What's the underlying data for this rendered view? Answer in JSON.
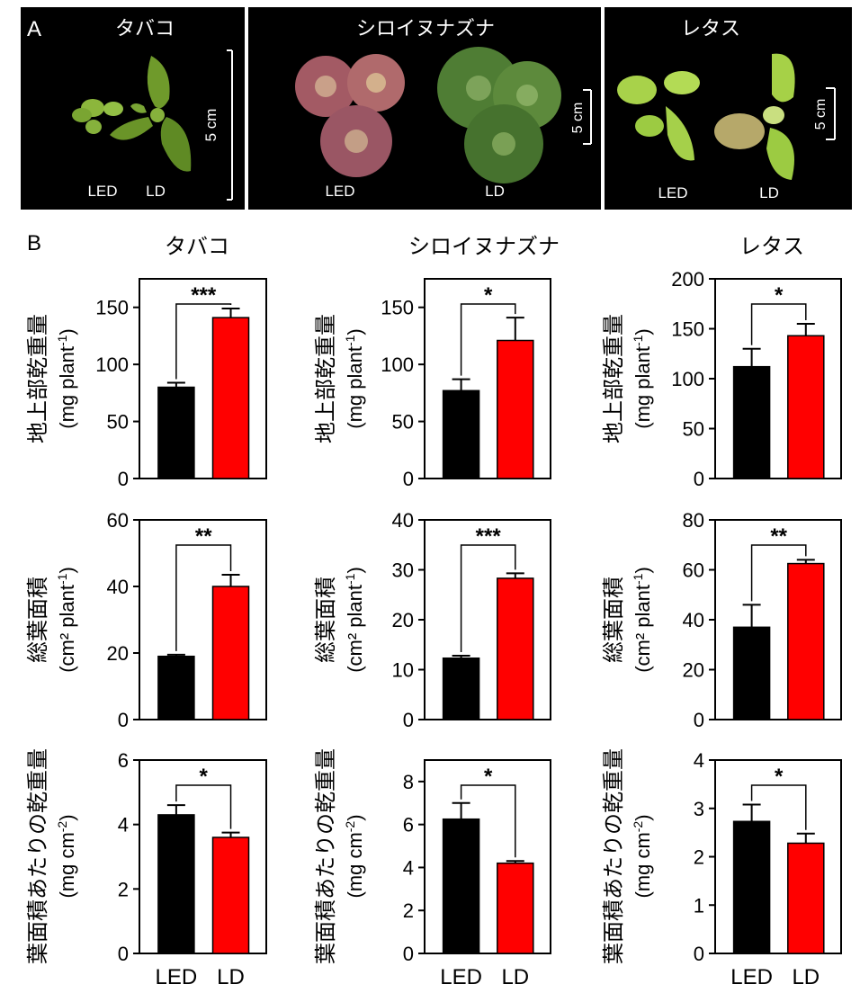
{
  "panel_a": {
    "label": "A",
    "photos": [
      {
        "species": "タバコ",
        "labels": [
          "LED",
          "LD"
        ],
        "scale_bar": "5 cm"
      },
      {
        "species": "シロイヌナズナ",
        "labels": [
          "LED",
          "LD"
        ],
        "scale_bar": "5 cm"
      },
      {
        "species": "レタス",
        "labels": [
          "LED",
          "LD"
        ],
        "scale_bar": "5 cm"
      }
    ]
  },
  "panel_b": {
    "label": "B",
    "species": [
      "タバコ",
      "シロイヌナズナ",
      "レタス"
    ],
    "row_labels": [
      {
        "main": "地上部乾重量",
        "unit_prefix": "(mg plant",
        "unit_sup": "-1",
        "unit_suffix": ")"
      },
      {
        "main": "総葉面積",
        "unit_prefix": "(cm² plant",
        "unit_sup": "-1",
        "unit_suffix": ")"
      },
      {
        "main": "葉面積あたりの乾重量",
        "unit_prefix": "(mg cm",
        "unit_sup": "-2",
        "unit_suffix": ")"
      }
    ],
    "categories": [
      "LED",
      "LD"
    ],
    "colors": {
      "LED": "#000000",
      "LD": "#ff0000"
    }
  },
  "chart_data": [
    {
      "type": "bar",
      "species": "タバコ",
      "ylabel": "地上部乾重量 (mg plant-1)",
      "categories": [
        "LED",
        "LD"
      ],
      "values": [
        80,
        141
      ],
      "errors": [
        4,
        8
      ],
      "ylim": [
        0,
        175
      ],
      "yticks": [
        0,
        50,
        100,
        150
      ],
      "significance": "***"
    },
    {
      "type": "bar",
      "species": "シロイヌナズナ",
      "ylabel": "地上部乾重量 (mg plant-1)",
      "categories": [
        "LED",
        "LD"
      ],
      "values": [
        77,
        121
      ],
      "errors": [
        10,
        20
      ],
      "ylim": [
        0,
        175
      ],
      "yticks": [
        0,
        50,
        100,
        150
      ],
      "significance": "*"
    },
    {
      "type": "bar",
      "species": "レタス",
      "ylabel": "地上部乾重量 (mg plant-1)",
      "categories": [
        "LED",
        "LD"
      ],
      "values": [
        112,
        143
      ],
      "errors": [
        18,
        12
      ],
      "ylim": [
        0,
        200
      ],
      "yticks": [
        0,
        50,
        100,
        150,
        200
      ],
      "significance": "*"
    },
    {
      "type": "bar",
      "species": "タバコ",
      "ylabel": "総葉面積 (cm2 plant-1)",
      "categories": [
        "LED",
        "LD"
      ],
      "values": [
        19,
        40
      ],
      "errors": [
        0.5,
        3.5
      ],
      "ylim": [
        0,
        60
      ],
      "yticks": [
        0,
        20,
        40,
        60
      ],
      "significance": "**"
    },
    {
      "type": "bar",
      "species": "シロイヌナズナ",
      "ylabel": "総葉面積 (cm2 plant-1)",
      "categories": [
        "LED",
        "LD"
      ],
      "values": [
        12.3,
        28.3
      ],
      "errors": [
        0.5,
        1
      ],
      "ylim": [
        0,
        40
      ],
      "yticks": [
        0,
        10,
        20,
        30,
        40
      ],
      "significance": "***"
    },
    {
      "type": "bar",
      "species": "レタス",
      "ylabel": "総葉面積 (cm2 plant-1)",
      "categories": [
        "LED",
        "LD"
      ],
      "values": [
        37,
        62.5
      ],
      "errors": [
        9,
        1.5
      ],
      "ylim": [
        0,
        80
      ],
      "yticks": [
        0,
        20,
        40,
        60,
        80
      ],
      "significance": "**"
    },
    {
      "type": "bar",
      "species": "タバコ",
      "ylabel": "葉面積あたりの乾重量 (mg cm-2)",
      "categories": [
        "LED",
        "LD"
      ],
      "values": [
        4.3,
        3.6
      ],
      "errors": [
        0.3,
        0.15
      ],
      "ylim": [
        0,
        6
      ],
      "yticks": [
        0,
        2,
        4,
        6
      ],
      "significance": "*"
    },
    {
      "type": "bar",
      "species": "シロイヌナズナ",
      "ylabel": "葉面積あたりの乾重量 (mg cm-2)",
      "categories": [
        "LED",
        "LD"
      ],
      "values": [
        6.25,
        4.2
      ],
      "errors": [
        0.75,
        0.1
      ],
      "ylim": [
        0,
        9
      ],
      "yticks": [
        0,
        2,
        4,
        6,
        8
      ],
      "significance": "*"
    },
    {
      "type": "bar",
      "species": "レタス",
      "ylabel": "葉面積あたりの乾重量 (mg cm-2)",
      "categories": [
        "LED",
        "LD"
      ],
      "values": [
        2.73,
        2.28
      ],
      "errors": [
        0.35,
        0.2
      ],
      "ylim": [
        0,
        4
      ],
      "yticks": [
        0,
        1,
        2,
        3,
        4
      ],
      "significance": "*"
    }
  ]
}
